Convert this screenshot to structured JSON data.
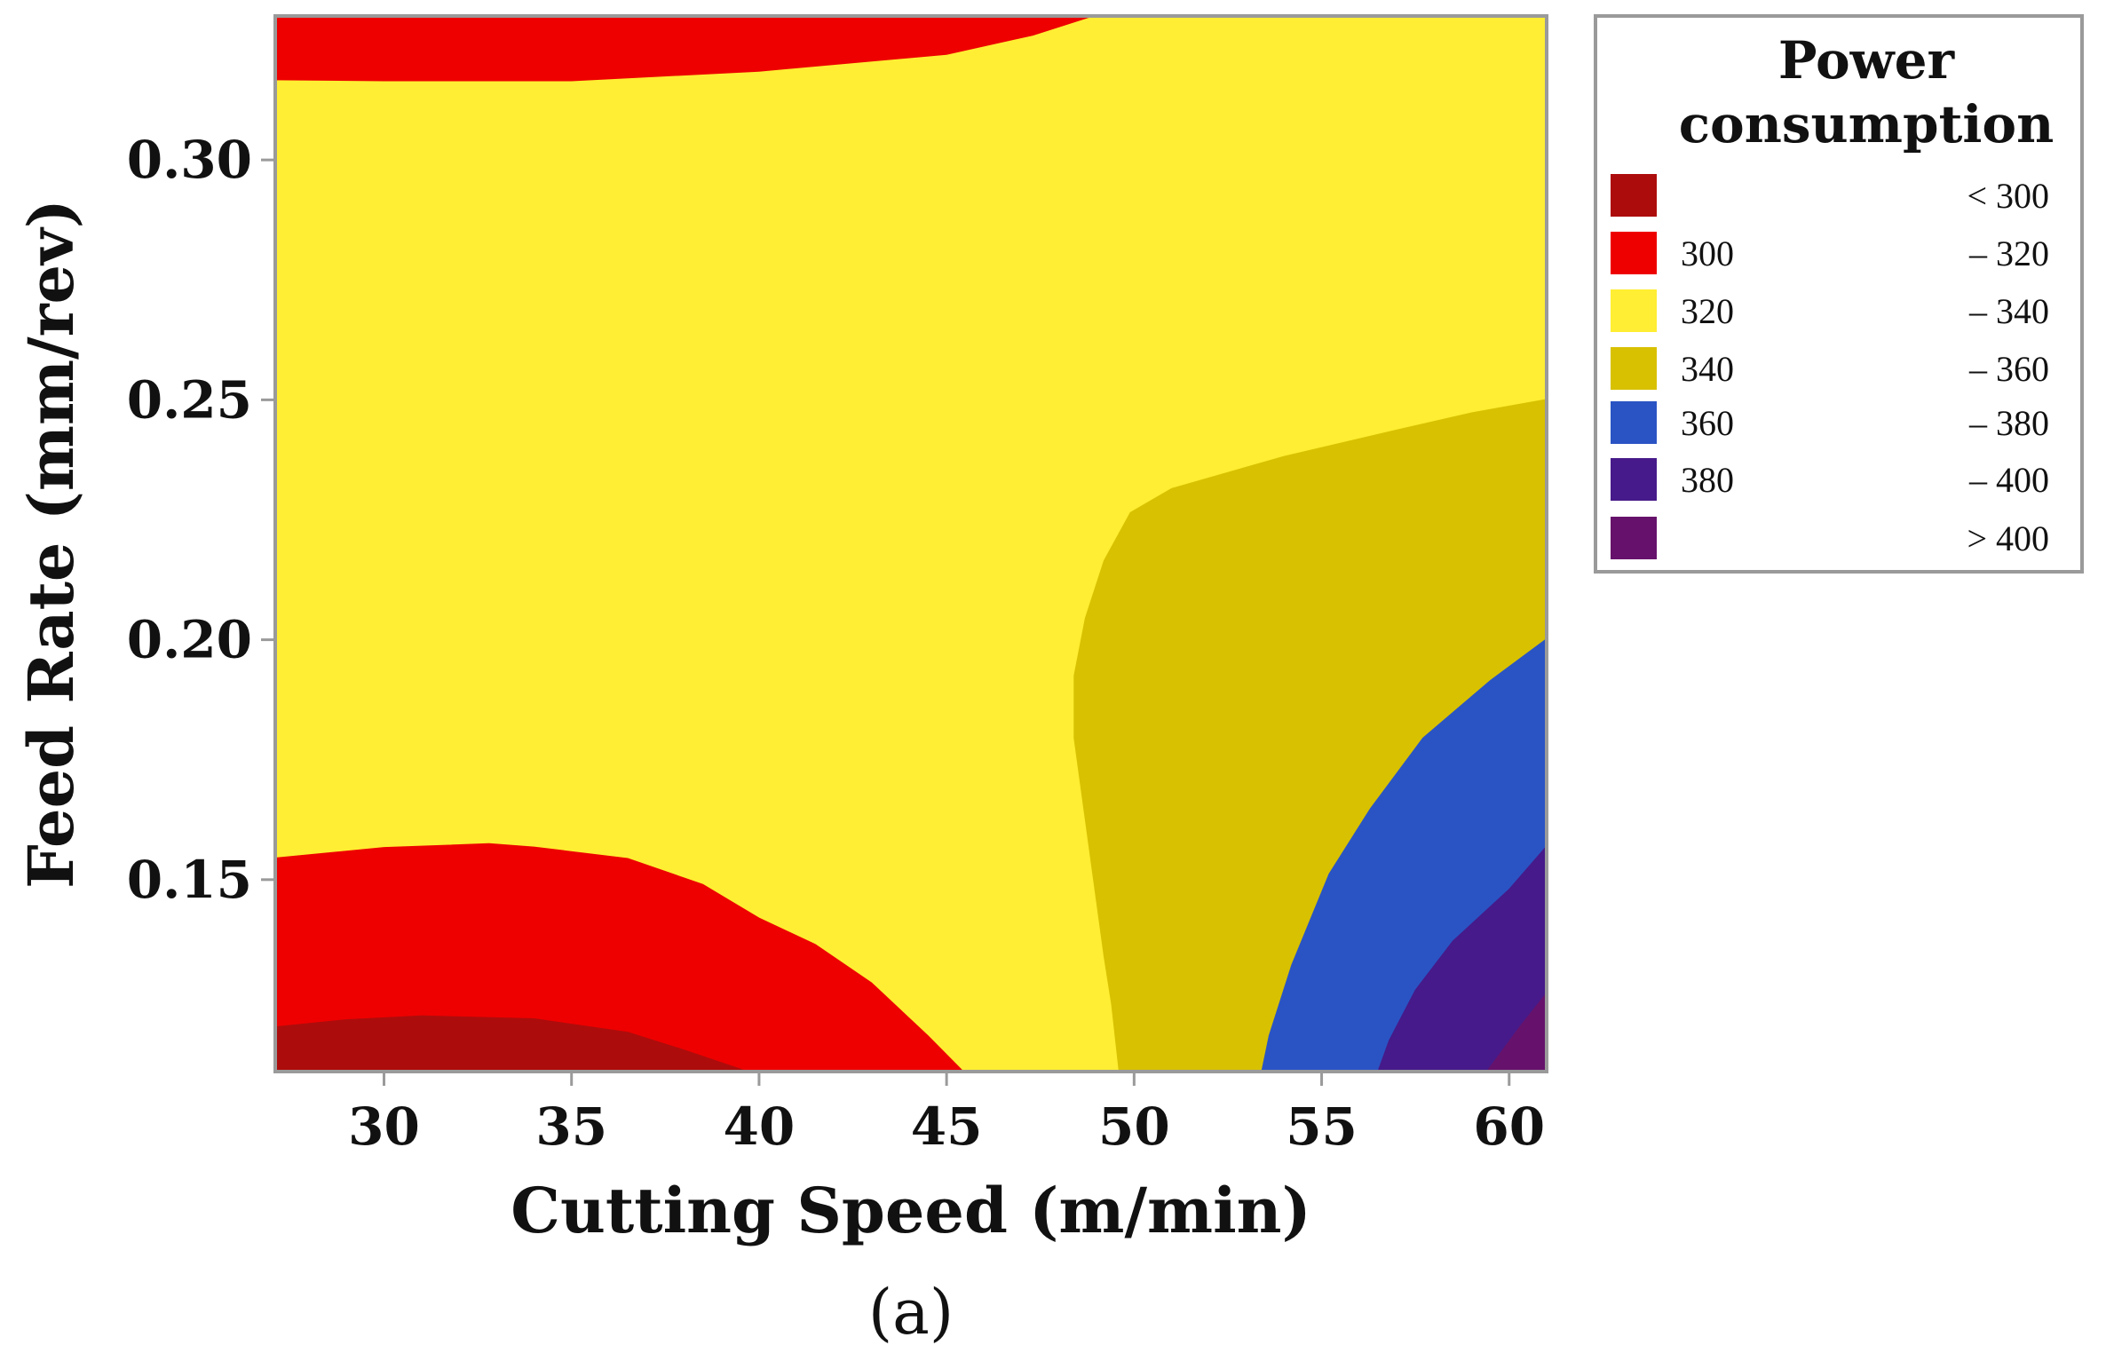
{
  "chart_data": {
    "type": "contour",
    "title": "",
    "xlabel": "Cutting Speed (m/min)",
    "ylabel": "Feed Rate (mm/rev)",
    "panel_label": "(a)",
    "xlim": [
      27.1,
      61.0
    ],
    "ylim": [
      0.11,
      0.33
    ],
    "xticks": [
      30,
      35,
      40,
      45,
      50,
      55,
      60
    ],
    "xtick_labels": [
      "30",
      "35",
      "40",
      "45",
      "50",
      "55",
      "60"
    ],
    "yticks": [
      0.15,
      0.2,
      0.25,
      0.3
    ],
    "ytick_labels": [
      "0.15",
      "0.20",
      "0.25",
      "0.30"
    ],
    "legend": {
      "title_lines": [
        "Power",
        "consumption"
      ],
      "position": "right",
      "entries": [
        {
          "low": "",
          "high": "< 300",
          "color": "#AD0C0C"
        },
        {
          "low": "300",
          "high": "– 320",
          "color": "#EE0000"
        },
        {
          "low": "320",
          "high": "– 340",
          "color": "#FFEE33"
        },
        {
          "low": "340",
          "high": "– 360",
          "color": "#D8C100"
        },
        {
          "low": "360",
          "high": "– 380",
          "color": "#2A54C4"
        },
        {
          "low": "380",
          "high": "– 400",
          "color": "#461A8A"
        },
        {
          "low": "",
          "high": "> 400",
          "color": "#66126C"
        }
      ]
    },
    "regions": [
      {
        "level": "320 – 340",
        "color": "#FFEE33",
        "polygon": [
          [
            27.1,
            0.11
          ],
          [
            61.0,
            0.11
          ],
          [
            61.0,
            0.33
          ],
          [
            27.1,
            0.33
          ]
        ]
      },
      {
        "level": "300 – 320",
        "color": "#EE0000",
        "polygon": [
          [
            27.1,
            0.33
          ],
          [
            48.9,
            0.33
          ],
          [
            47.3,
            0.326
          ],
          [
            45.0,
            0.322
          ],
          [
            40.0,
            0.3185
          ],
          [
            35.0,
            0.3165
          ],
          [
            30.0,
            0.3165
          ],
          [
            27.1,
            0.3167
          ]
        ]
      },
      {
        "level": "300 – 320",
        "color": "#EE0000",
        "polygon": [
          [
            27.1,
            0.11
          ],
          [
            45.45,
            0.11
          ],
          [
            44.5,
            0.1175
          ],
          [
            43.0,
            0.1285
          ],
          [
            41.5,
            0.1365
          ],
          [
            40.0,
            0.142
          ],
          [
            38.5,
            0.149
          ],
          [
            36.5,
            0.1544
          ],
          [
            34.0,
            0.1568
          ],
          [
            32.8,
            0.1575
          ],
          [
            30.0,
            0.1567
          ],
          [
            27.1,
            0.1545
          ]
        ]
      },
      {
        "level": "< 300",
        "color": "#AD0C0C",
        "polygon": [
          [
            27.1,
            0.11
          ],
          [
            39.7,
            0.11
          ],
          [
            38.0,
            0.1145
          ],
          [
            36.5,
            0.1182
          ],
          [
            34.0,
            0.121
          ],
          [
            31.0,
            0.1216
          ],
          [
            29.0,
            0.1208
          ],
          [
            27.1,
            0.1193
          ]
        ]
      },
      {
        "level": "340 – 360",
        "color": "#D8C100",
        "polygon": [
          [
            49.6,
            0.11
          ],
          [
            61.0,
            0.11
          ],
          [
            61.0,
            0.2501
          ],
          [
            59.0,
            0.2473
          ],
          [
            57.0,
            0.2437
          ],
          [
            54.0,
            0.2382
          ],
          [
            51.0,
            0.2315
          ],
          [
            49.9,
            0.2265
          ],
          [
            49.2,
            0.2165
          ],
          [
            48.7,
            0.2045
          ],
          [
            48.4,
            0.1925
          ],
          [
            48.4,
            0.1795
          ],
          [
            48.9,
            0.151
          ],
          [
            49.2,
            0.134
          ],
          [
            49.4,
            0.124
          ]
        ]
      },
      {
        "level": "360 – 380",
        "color": "#2A54C4",
        "polygon": [
          [
            53.4,
            0.11
          ],
          [
            61.0,
            0.11
          ],
          [
            61.0,
            0.2002
          ],
          [
            59.5,
            0.1915
          ],
          [
            57.7,
            0.1795
          ],
          [
            56.3,
            0.1648
          ],
          [
            55.2,
            0.1512
          ],
          [
            54.2,
            0.1322
          ],
          [
            53.6,
            0.1175
          ]
        ]
      },
      {
        "level": "380 – 400",
        "color": "#461A8A",
        "polygon": [
          [
            56.5,
            0.11
          ],
          [
            61.0,
            0.11
          ],
          [
            61.0,
            0.157
          ],
          [
            60.0,
            0.148
          ],
          [
            58.5,
            0.1372
          ],
          [
            57.5,
            0.127
          ],
          [
            56.8,
            0.1165
          ]
        ]
      },
      {
        "level": "> 400",
        "color": "#66126C",
        "polygon": [
          [
            59.4,
            0.11
          ],
          [
            61.0,
            0.11
          ],
          [
            61.0,
            0.1264
          ],
          [
            60.3,
            0.1195
          ],
          [
            59.8,
            0.1142
          ]
        ]
      }
    ]
  }
}
